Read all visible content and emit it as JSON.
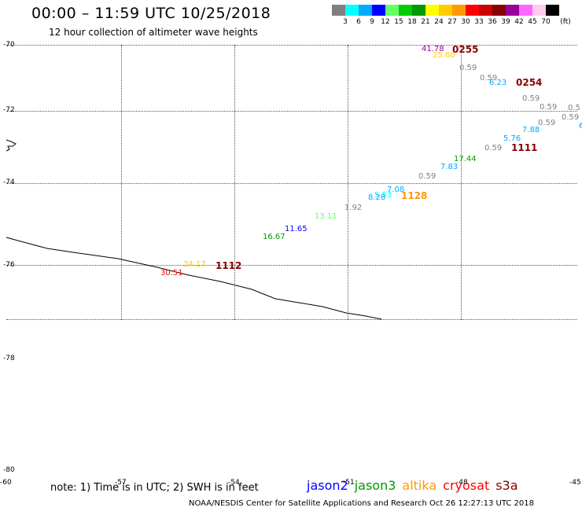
{
  "header": {
    "title": "00:00 – 11:59 UTC 10/25/2018",
    "subtitle": "12 hour collection of altimeter wave heights"
  },
  "legend": {
    "swatches": [
      {
        "label": "3",
        "color": "#808080"
      },
      {
        "label": "6",
        "color": "#00ffff"
      },
      {
        "label": "9",
        "color": "#00aaff"
      },
      {
        "label": "12",
        "color": "#0000ff"
      },
      {
        "label": "15",
        "color": "#66ff66"
      },
      {
        "label": "18",
        "color": "#00cc00"
      },
      {
        "label": "21",
        "color": "#009900"
      },
      {
        "label": "24",
        "color": "#ffff00"
      },
      {
        "label": "27",
        "color": "#ffcc00"
      },
      {
        "label": "30",
        "color": "#ff9900"
      },
      {
        "label": "33",
        "color": "#ff0000"
      },
      {
        "label": "36",
        "color": "#cc0000"
      },
      {
        "label": "39",
        "color": "#880000"
      },
      {
        "label": "42",
        "color": "#990099"
      },
      {
        "label": "45",
        "color": "#ff66ff"
      },
      {
        "label": "70",
        "color": "#ffccee"
      },
      {
        "label": "",
        "color": "#000000"
      }
    ],
    "unit": "(ft)"
  },
  "axes": {
    "lat_labels": [
      "-70",
      "-72",
      "-74",
      "-76",
      "-78",
      "-80"
    ],
    "lon_labels": [
      "-60",
      "-57",
      "-54",
      "-51",
      "-48",
      "-45"
    ]
  },
  "measurements": [
    {
      "text": "41.78",
      "color": "#990099"
    },
    {
      "text": "25.60",
      "color": "#ffcc00"
    },
    {
      "text": "0.59",
      "color": "#808080"
    },
    {
      "text": "0.59",
      "color": "#808080"
    },
    {
      "text": "6.23",
      "color": "#00aaff"
    },
    {
      "text": "0.59",
      "color": "#808080"
    },
    {
      "text": "0.59",
      "color": "#808080"
    },
    {
      "text": "0.5",
      "color": "#808080"
    },
    {
      "text": "0.59",
      "color": "#808080"
    },
    {
      "text": "0.59",
      "color": "#808080"
    },
    {
      "text": "6",
      "color": "#00aaff"
    },
    {
      "text": "7.88",
      "color": "#00aaff"
    },
    {
      "text": "5.76",
      "color": "#00aaff"
    },
    {
      "text": "0.59",
      "color": "#808080"
    },
    {
      "text": "17.44",
      "color": "#009900"
    },
    {
      "text": "7.83",
      "color": "#00aaff"
    },
    {
      "text": "0.59",
      "color": "#808080"
    },
    {
      "text": "7.08",
      "color": "#00aaff"
    },
    {
      "text": "5.53",
      "color": "#00ffff"
    },
    {
      "text": "8.28",
      "color": "#00aaff"
    },
    {
      "text": "1.92",
      "color": "#808080"
    },
    {
      "text": "13.11",
      "color": "#66ff66"
    },
    {
      "text": "11.65",
      "color": "#0000ff"
    },
    {
      "text": "16.67",
      "color": "#009900"
    },
    {
      "text": "24.17",
      "color": "#ffcc00"
    },
    {
      "text": "30.51",
      "color": "#ff0000"
    }
  ],
  "time_marks": [
    {
      "text": "0255",
      "color": "#880000"
    },
    {
      "text": "0254",
      "color": "#880000"
    },
    {
      "text": "1111",
      "color": "#880000"
    },
    {
      "text": "1128",
      "color": "#ff9900"
    },
    {
      "text": "1112",
      "color": "#880000"
    }
  ],
  "note": "note: 1) Time is in UTC; 2) SWH is in feet",
  "satellites": [
    {
      "name": "jason2",
      "color": "#0000ff"
    },
    {
      "name": "jason3",
      "color": "#009900"
    },
    {
      "name": "altika",
      "color": "#ff9900"
    },
    {
      "name": "cryosat",
      "color": "#ff0000"
    },
    {
      "name": "s3a",
      "color": "#880000"
    }
  ],
  "footer": "NOAA/NESDIS Center for Satellite Applications and Research    Oct 26 12:27:13 UTC 2018"
}
